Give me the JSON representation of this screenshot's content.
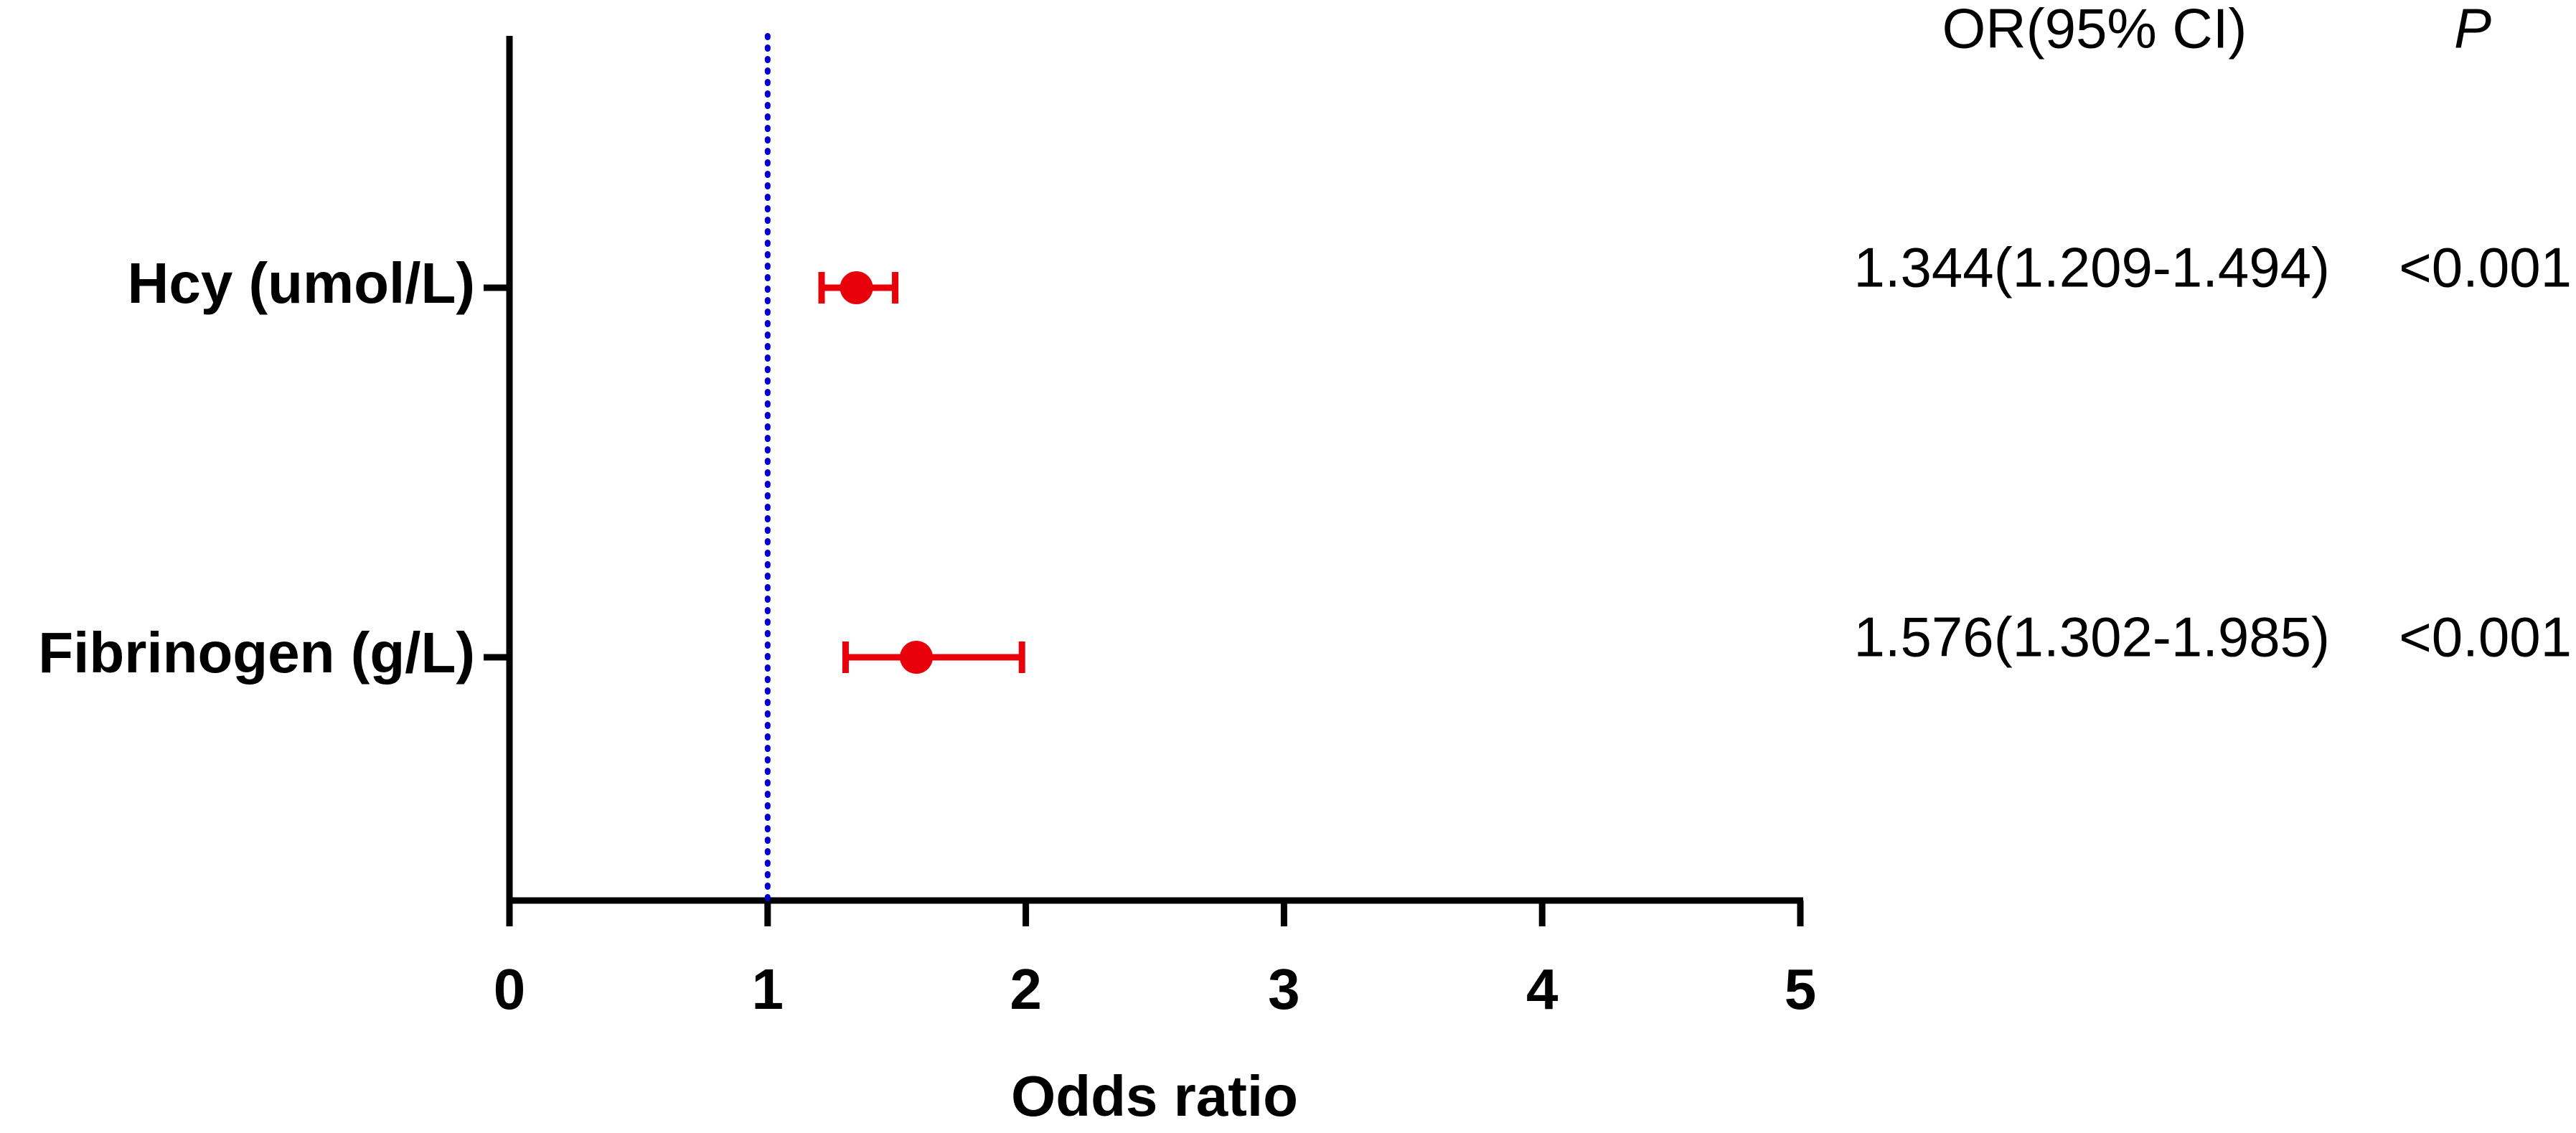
{
  "chart_data": {
    "type": "forest",
    "categories": [
      "Hcy (umol/L)",
      "Fibrinogen (g/L)"
    ],
    "values": [
      1.344,
      1.576
    ],
    "ci_low": [
      1.209,
      1.302
    ],
    "ci_high": [
      1.494,
      1.985
    ],
    "value_labels": [
      "1.344(1.209-1.494)",
      "1.576(1.302-1.985)"
    ],
    "p_values": [
      "<0.001",
      "<0.001"
    ],
    "column_headers": [
      "OR(95% CI)",
      "P"
    ],
    "xlabel": "Odds ratio",
    "xlim": [
      0,
      5
    ],
    "xticks": [
      0,
      1,
      2,
      3,
      4,
      5
    ],
    "reference_line": 1,
    "color": "#e8000b",
    "reference_color": "#0000cc"
  }
}
